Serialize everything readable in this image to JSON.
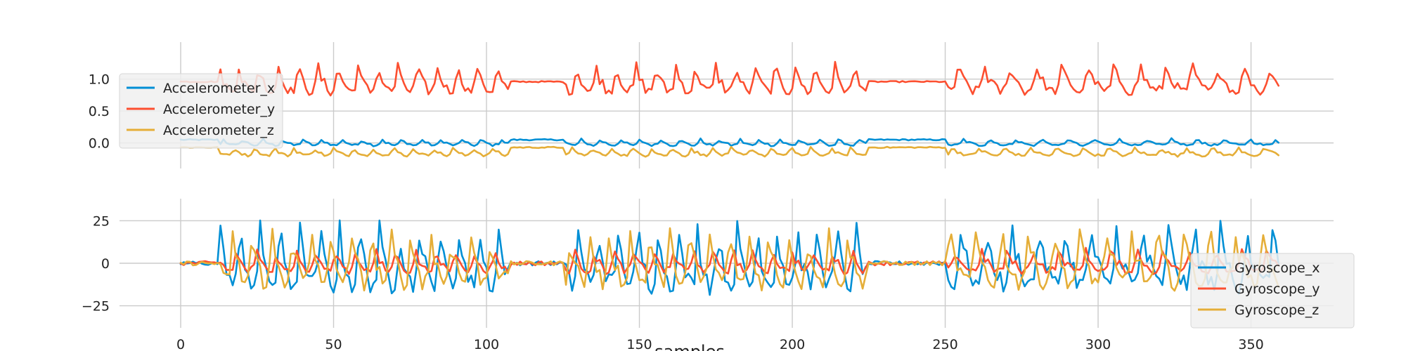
{
  "chart_data": [
    {
      "type": "line",
      "x": {
        "start": 0,
        "end": 359,
        "step": 1
      },
      "xlim": [
        -20,
        377
      ],
      "ylim": [
        -0.4,
        1.58
      ],
      "xticks": [
        0,
        50,
        100,
        150,
        200,
        250,
        300,
        350
      ],
      "yticks": [
        0.0,
        0.5,
        1.0
      ],
      "ytick_labels": [
        "0.0",
        "0.5",
        "1.0"
      ],
      "grid": true,
      "legend_position": "upper-left",
      "xlabel": "",
      "series": [
        {
          "name": "Accelerometer_x",
          "color": "#008fd5",
          "mean": 0.0,
          "spread": 0.04
        },
        {
          "name": "Accelerometer_y",
          "color": "#fc4f30",
          "mean": 0.96,
          "spread": 0.17
        },
        {
          "name": "Accelerometer_z",
          "color": "#e5ae38",
          "mean": -0.15,
          "spread": 0.05
        }
      ]
    },
    {
      "type": "line",
      "x": {
        "start": 0,
        "end": 359,
        "step": 1
      },
      "xlim": [
        -20,
        377
      ],
      "ylim": [
        -38,
        38
      ],
      "xticks": [
        0,
        50,
        100,
        150,
        200,
        250,
        300,
        350
      ],
      "xtick_labels": [
        "0",
        "50",
        "100",
        "150",
        "200",
        "250",
        "300",
        "350"
      ],
      "yticks": [
        -25,
        0,
        25
      ],
      "ytick_labels": [
        "−25",
        "0",
        "25"
      ],
      "grid": true,
      "legend_position": "lower-right",
      "xlabel": "samples",
      "series": [
        {
          "name": "Gyroscope_x",
          "color": "#008fd5",
          "mean": 0,
          "spread": 14
        },
        {
          "name": "Gyroscope_y",
          "color": "#fc4f30",
          "mean": 0,
          "spread": 5
        },
        {
          "name": "Gyroscope_z",
          "color": "#e5ae38",
          "mean": 0,
          "spread": 12
        }
      ]
    }
  ]
}
